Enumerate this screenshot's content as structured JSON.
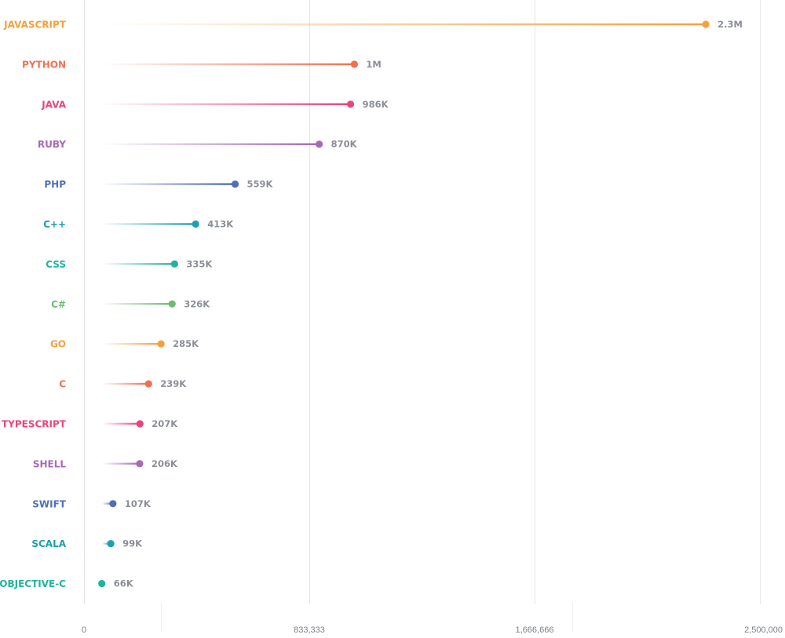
{
  "chart_data": {
    "type": "lollipop",
    "orientation": "horizontal",
    "title": "",
    "xlabel": "",
    "ylabel": "",
    "xlim": [
      0,
      2500000
    ],
    "x_ticks": [
      0,
      833333,
      1666666,
      2500000
    ],
    "x_tick_labels": [
      "0",
      "833,333",
      "1,666,666",
      "2,500,000"
    ],
    "grid": "vertical",
    "categories": [
      "JAVASCRIPT",
      "PYTHON",
      "JAVA",
      "RUBY",
      "PHP",
      "C++",
      "CSS",
      "C#",
      "GO",
      "C",
      "TYPESCRIPT",
      "SHELL",
      "SWIFT",
      "SCALA",
      "OBJECTIVE-C"
    ],
    "values": [
      2300000,
      1000000,
      986000,
      870000,
      559000,
      413000,
      335000,
      326000,
      285000,
      239000,
      207000,
      206000,
      107000,
      99000,
      66000
    ],
    "value_labels": [
      "2.3M",
      "1M",
      "986K",
      "870K",
      "559K",
      "413K",
      "335K",
      "326K",
      "285K",
      "239K",
      "207K",
      "206K",
      "107K",
      "99K",
      "66K"
    ],
    "colors": [
      "#f5a03b",
      "#f07150",
      "#e9457a",
      "#a66ab7",
      "#4f6fb8",
      "#1c9fb0",
      "#20b3a0",
      "#6dbb73",
      "#f5a03b",
      "#f07150",
      "#e9457a",
      "#a66ab7",
      "#4f6fb8",
      "#1c9fb0",
      "#20b3a0"
    ]
  }
}
